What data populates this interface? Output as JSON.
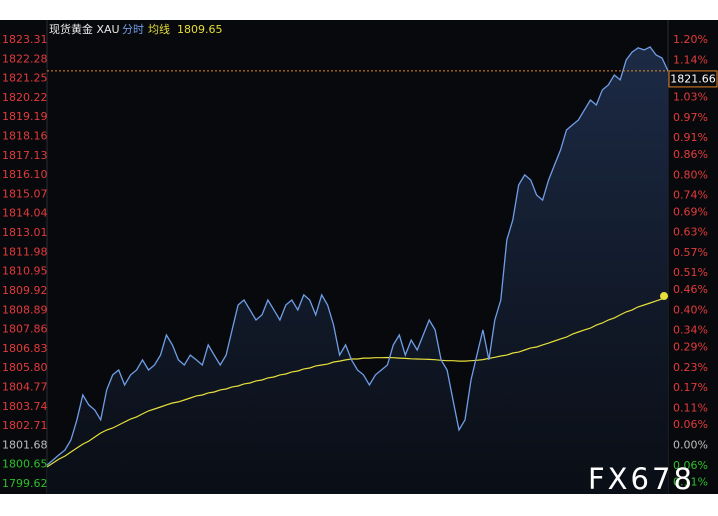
{
  "chart_data": {
    "type": "line",
    "title": "现货黄金 XAU",
    "watermark": "FX678",
    "series": [
      {
        "name": "分时",
        "color": "#6f9ee6",
        "values": [
          1800.63,
          1800.9,
          1801.17,
          1801.43,
          1801.97,
          1803.04,
          1804.37,
          1803.84,
          1803.57,
          1803.04,
          1804.64,
          1805.44,
          1805.7,
          1804.9,
          1805.44,
          1805.7,
          1806.24,
          1805.7,
          1805.97,
          1806.5,
          1807.57,
          1807.04,
          1806.24,
          1805.97,
          1806.5,
          1806.24,
          1805.97,
          1807.04,
          1806.5,
          1805.97,
          1806.5,
          1807.84,
          1809.17,
          1809.44,
          1808.91,
          1808.37,
          1808.64,
          1809.44,
          1808.91,
          1808.37,
          1809.17,
          1809.44,
          1808.91,
          1809.71,
          1809.44,
          1808.64,
          1809.71,
          1809.17,
          1808.1,
          1806.5,
          1807.04,
          1806.24,
          1805.7,
          1805.44,
          1804.9,
          1805.44,
          1805.7,
          1805.97,
          1807.04,
          1807.57,
          1806.5,
          1807.3,
          1806.77,
          1807.57,
          1808.37,
          1807.84,
          1806.24,
          1805.7,
          1804.1,
          1802.5,
          1803.04,
          1805.17,
          1806.5,
          1807.84,
          1806.24,
          1808.37,
          1809.44,
          1812.64,
          1813.71,
          1815.58,
          1816.11,
          1815.84,
          1815.04,
          1814.77,
          1815.84,
          1816.64,
          1817.44,
          1818.51,
          1818.78,
          1819.04,
          1819.58,
          1820.11,
          1819.84,
          1820.64,
          1820.91,
          1821.44,
          1821.18,
          1822.25,
          1822.67,
          1822.89,
          1822.78,
          1822.94,
          1822.51,
          1822.35,
          1821.66
        ]
      },
      {
        "name": "均线",
        "color": "#e6df3c",
        "values": [
          1800.53,
          1800.74,
          1800.95,
          1801.11,
          1801.33,
          1801.54,
          1801.75,
          1801.91,
          1802.13,
          1802.34,
          1802.5,
          1802.61,
          1802.77,
          1802.93,
          1803.09,
          1803.2,
          1803.36,
          1803.52,
          1803.62,
          1803.73,
          1803.84,
          1803.94,
          1804.0,
          1804.1,
          1804.21,
          1804.32,
          1804.37,
          1804.48,
          1804.53,
          1804.64,
          1804.69,
          1804.8,
          1804.85,
          1804.96,
          1805.01,
          1805.12,
          1805.17,
          1805.28,
          1805.33,
          1805.44,
          1805.49,
          1805.6,
          1805.65,
          1805.76,
          1805.81,
          1805.92,
          1805.97,
          1806.02,
          1806.13,
          1806.18,
          1806.24,
          1806.29,
          1806.29,
          1806.34,
          1806.34,
          1806.36,
          1806.36,
          1806.37,
          1806.36,
          1806.34,
          1806.32,
          1806.3,
          1806.29,
          1806.28,
          1806.27,
          1806.25,
          1806.22,
          1806.2,
          1806.2,
          1806.18,
          1806.18,
          1806.2,
          1806.22,
          1806.26,
          1806.32,
          1806.38,
          1806.45,
          1806.5,
          1806.61,
          1806.66,
          1806.77,
          1806.88,
          1806.93,
          1807.04,
          1807.14,
          1807.25,
          1807.36,
          1807.46,
          1807.62,
          1807.73,
          1807.84,
          1807.94,
          1808.1,
          1808.21,
          1808.37,
          1808.48,
          1808.64,
          1808.8,
          1808.91,
          1809.07,
          1809.17,
          1809.28,
          1809.39,
          1809.49,
          1809.65
        ]
      }
    ],
    "ylim": [
      1799.62,
      1823.31
    ],
    "yticks": [
      1823.31,
      1822.28,
      1821.25,
      1820.22,
      1819.19,
      1818.16,
      1817.13,
      {
        "value": 1816.1,
        "label": "1816.10"
      },
      1815.07,
      1814.04,
      1813.01,
      1811.98,
      1810.95,
      1809.92,
      1808.89,
      1807.86,
      1806.83,
      {
        "value": 1805.8,
        "label": "1805.80"
      },
      1804.77,
      1803.74,
      1802.71,
      1801.68,
      1800.65,
      1799.62
    ],
    "y2lim": [
      -0.114,
      1.2005
    ],
    "y2ticks": [
      {
        "value": 1.2,
        "label": "1.20%"
      },
      {
        "value": 1.14,
        "label": "1.14%"
      },
      {
        "value": 1.03,
        "label": "1.03%"
      },
      {
        "value": 0.97,
        "label": "0.97%"
      },
      {
        "value": 0.91,
        "label": "0.91%"
      },
      {
        "value": 0.86,
        "label": "0.86%"
      },
      {
        "value": 0.8,
        "label": "0.80%"
      },
      {
        "value": 0.74,
        "label": "0.74%"
      },
      {
        "value": 0.69,
        "label": "0.69%"
      },
      {
        "value": 0.63,
        "label": "0.63%"
      },
      {
        "value": 0.57,
        "label": "0.57%"
      },
      {
        "value": 0.51,
        "label": "0.51%"
      },
      {
        "value": 0.46,
        "label": "0.46%"
      },
      {
        "value": 0.4,
        "label": "0.40%"
      },
      {
        "value": 0.34,
        "label": "0.34%"
      },
      {
        "value": 0.29,
        "label": "0.29%"
      },
      {
        "value": 0.23,
        "label": "0.23%"
      },
      {
        "value": 0.17,
        "label": "0.17%"
      },
      {
        "value": 0.11,
        "label": "0.11%"
      },
      {
        "value": 0.06,
        "label": "0.06%"
      },
      {
        "value": 0,
        "label": "0.00%"
      },
      {
        "value": -0.06,
        "label": "0.06%"
      },
      {
        "value": -0.11,
        "label": "0.11%"
      }
    ],
    "up_color": "#e23b3b",
    "down_color": "#2dbf2d",
    "flat_color": "#bdbdbd",
    "last_price_line_color": "#e0862c",
    "area_color": "#1d2c48"
  }
}
